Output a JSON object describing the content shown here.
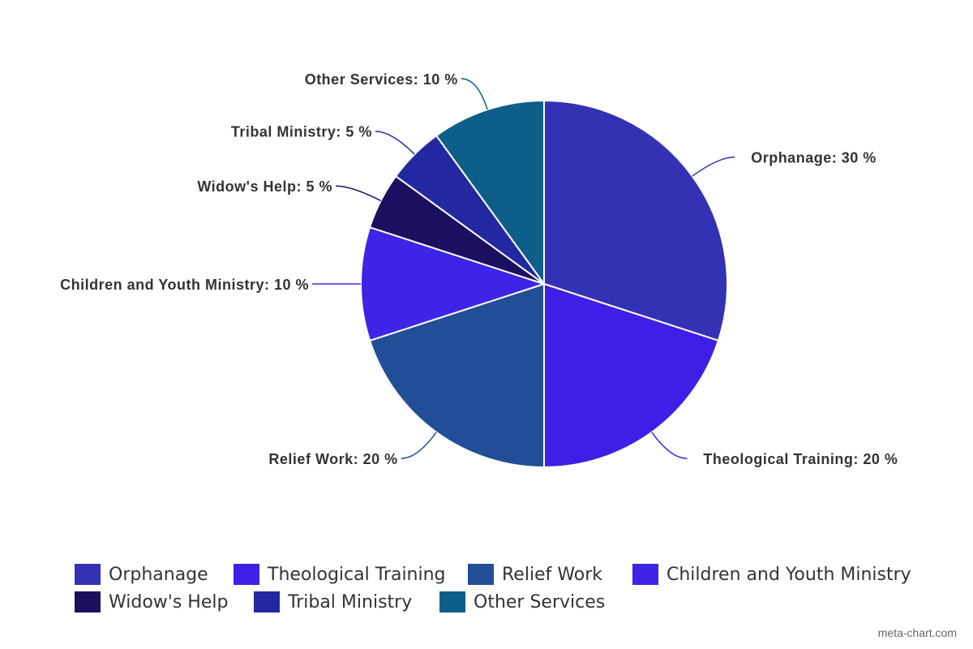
{
  "chart_data": {
    "type": "pie",
    "categories": [
      "Orphanage",
      "Theological Training",
      "Relief Work",
      "Children and Youth Ministry",
      "Widow's Help",
      "Tribal Ministry",
      "Other Services"
    ],
    "values": [
      30,
      20,
      20,
      10,
      5,
      5,
      10
    ],
    "value_labels": [
      "Orphanage: 30 %",
      "Theological Training: 20 %",
      "Relief Work: 20 %",
      "Children and Youth Ministry: 10 %",
      "Widow's Help: 5 %",
      "Tribal Ministry: 5 %",
      "Other Services: 10 %"
    ],
    "colors": [
      "#3432b4",
      "#3f1fe6",
      "#224e98",
      "#3e24e6",
      "#1b1060",
      "#2229a0",
      "#0e5e8a"
    ],
    "credit": "meta-chart.com"
  }
}
